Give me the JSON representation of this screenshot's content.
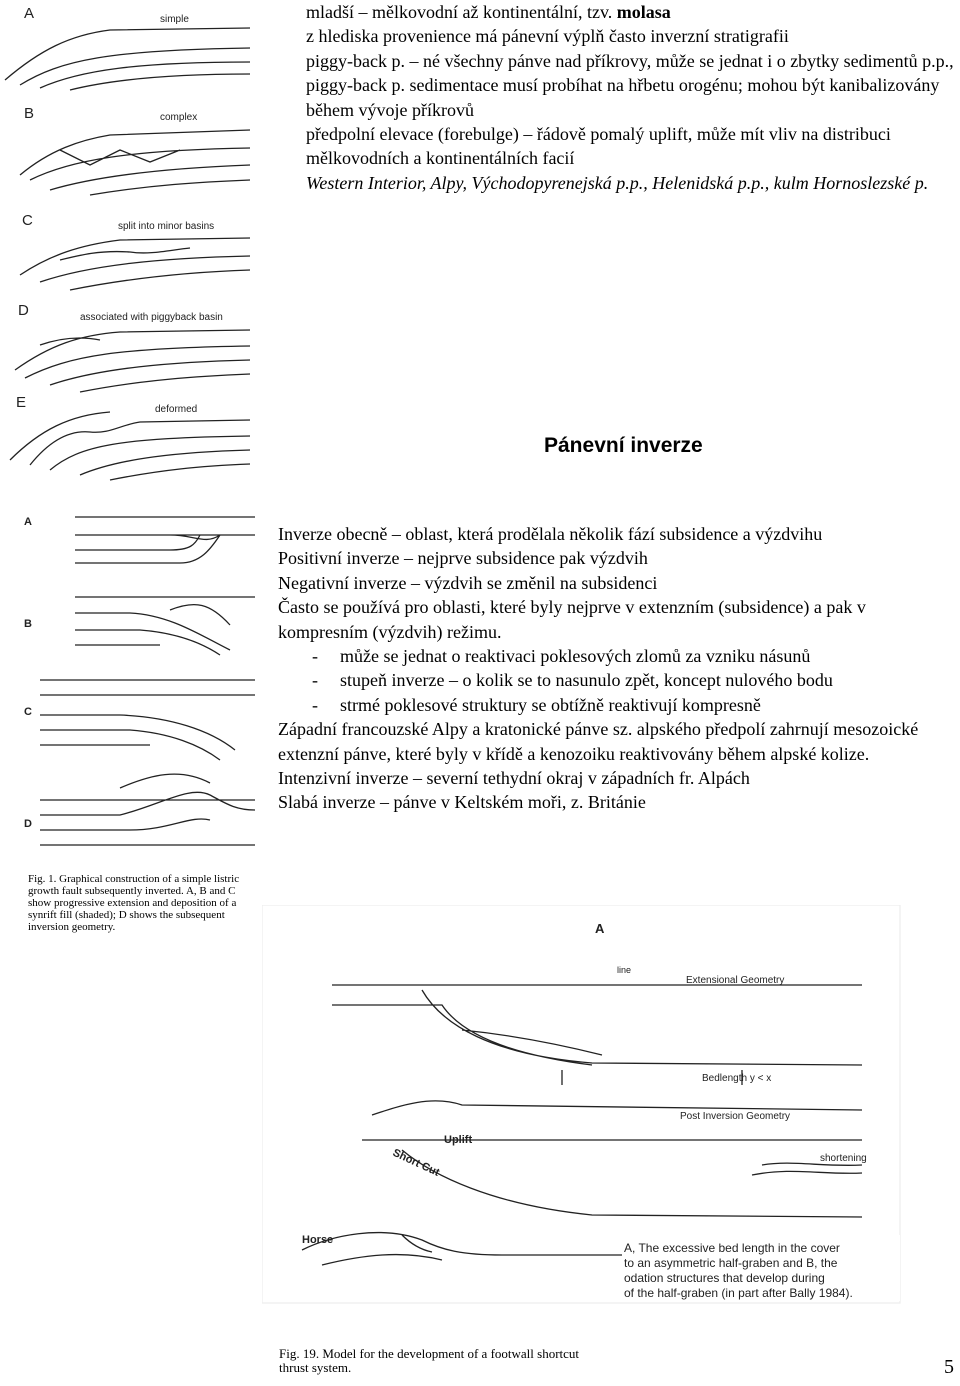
{
  "intro": [
    {
      "text": "mladší – mělkovodní až kontinentální, tzv. ",
      "bold": "molasa"
    },
    {
      "text": "z hlediska provenience má pánevní výplň často inverzní stratigrafii"
    },
    {
      "text": "piggy-back p. – né všechny pánve nad příkrovy, může se jednat i o zbytky sedimentů p.p., piggy-back p. sedimentace musí probíhat na hřbetu orogénu; mohou být kanibalizovány během vývoje příkrovů"
    },
    {
      "text": "předpolní elevace (forebulge) – řádově pomalý uplift, může mít vliv na distribuci mělkovodních a kontinentálních facií"
    },
    {
      "italic": "Western Interior, Alpy, Východopyrenejská p.p., Helenidská p.p., kulm Hornoslezské p."
    }
  ],
  "figure1": {
    "panels": [
      {
        "letter": "A",
        "label": "simple"
      },
      {
        "letter": "B",
        "label": "complex"
      },
      {
        "letter": "C",
        "label": "split into minor basins"
      },
      {
        "letter": "D",
        "label": "associated with piggyback basin"
      },
      {
        "letter": "E",
        "label": "deformed"
      }
    ]
  },
  "heading": "Pánevní inverze",
  "inversion": {
    "lines": [
      "Inverze obecně – oblast, která prodělala několik fází subsidence a výzdvihu",
      "Positivní inverze – nejprve subsidence pak výzdvih",
      "Negativní inverze – výzdvih se změnil na subsidenci",
      "Často se používá pro oblasti, které byly nejprve v extenzním (subsidence) a pak v kompresním (výzdvih) režimu."
    ],
    "bullets": [
      "může se jednat o reaktivaci poklesových zlomů za vzniku násunů",
      "stupeň inverze – o kolik se to nasunulo zpět, koncept nulového bodu",
      "strmé poklesové struktury se obtížně reaktivují kompresně"
    ],
    "examples": [
      "Západní francouzské Alpy a kratonické pánve sz. alpského předpolí zahrnují mesozoické extenzní pánve, které byly v křídě a kenozoiku reaktivovány během alpské kolize.",
      "Intenzivní inverze – severní tethydní okraj v západních fr. Alpách",
      "Slabá inverze – pánve v Keltském moři, z. Británie"
    ]
  },
  "figure2": {
    "letters": [
      "A",
      "B",
      "C",
      "D"
    ],
    "caption": "Fig. 1. Graphical construction of a simple listric growth fault subsequently inverted. A, B and C show progressive extension and deposition of a synrift fill (shaded); D shows the subsequent inversion geometry."
  },
  "figure3": {
    "letter": "A",
    "fragment": "line",
    "labels": [
      "Extensional Geometry",
      "Bedlength y < x",
      "Uplift",
      "Short Cut",
      "Post Inversion Geometry",
      "shortening",
      "Horse"
    ],
    "caption_lines": [
      "A, The excessive bed length in the cover",
      "to an asymmetric half-graben and B, the",
      "odation structures that develop during",
      "of the half-graben (in part after Bally 1984)."
    ],
    "caption": "Fig. 19. Model for the development of a footwall shortcut thrust system."
  },
  "page_number": "5"
}
